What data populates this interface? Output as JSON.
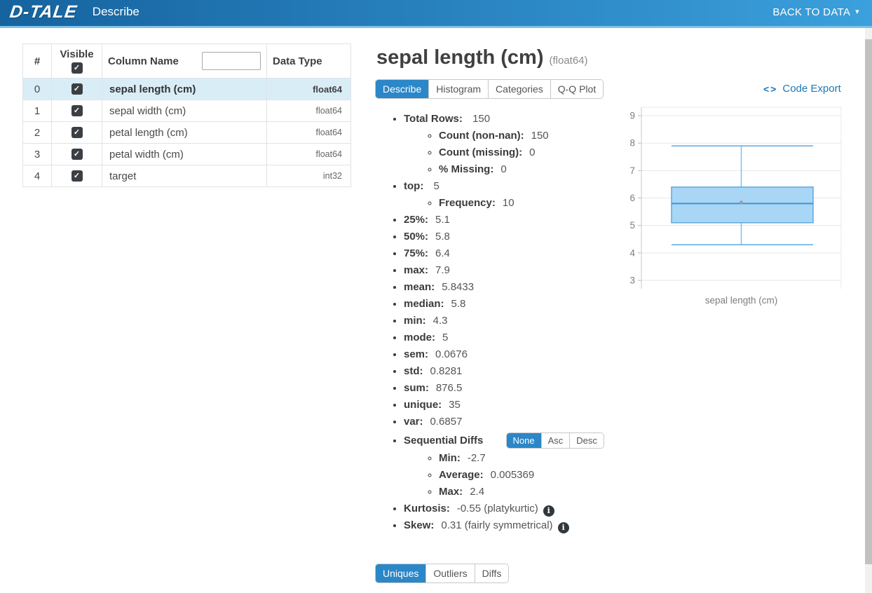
{
  "header": {
    "logo": "D-TALE",
    "title": "Describe",
    "back_link": "BACK TO DATA"
  },
  "icons": {
    "caret_down": "▾",
    "check": "✓",
    "info": "i",
    "code": "<>"
  },
  "colors": {
    "accent_blue": "#2b87c8",
    "header_gradient_left": "#15639f",
    "header_gradient_right": "#3ba0dc",
    "selected_row_bg": "#d9edf7",
    "link_blue": "#1f78b5",
    "box_fill": "#a9d6f5",
    "box_stroke": "#5ea9e0"
  },
  "columns_table": {
    "index_header": "#",
    "visible_header": "Visible",
    "name_header": "Column Name",
    "dtype_header": "Data Type",
    "filter_value": "",
    "rows": [
      {
        "index": "0",
        "visible": true,
        "name": "sepal length (cm)",
        "dtype": "float64",
        "selected": true
      },
      {
        "index": "1",
        "visible": true,
        "name": "sepal width (cm)",
        "dtype": "float64",
        "selected": false
      },
      {
        "index": "2",
        "visible": true,
        "name": "petal length (cm)",
        "dtype": "float64",
        "selected": false
      },
      {
        "index": "3",
        "visible": true,
        "name": "petal width (cm)",
        "dtype": "float64",
        "selected": false
      },
      {
        "index": "4",
        "visible": true,
        "name": "target",
        "dtype": "int32",
        "selected": false
      }
    ]
  },
  "details": {
    "title": "sepal length (cm)",
    "dtype_suffix": "(float64)",
    "tabs": [
      {
        "label": "Describe",
        "active": true
      },
      {
        "label": "Histogram",
        "active": false
      },
      {
        "label": "Categories",
        "active": false
      },
      {
        "label": "Q-Q Plot",
        "active": false
      }
    ],
    "code_export_icon": "<>",
    "code_export_label": "Code Export",
    "stats": [
      {
        "label": "Total Rows:",
        "value": "150",
        "children": [
          {
            "label": "Count (non-nan):",
            "value": "150"
          },
          {
            "label": "Count (missing):",
            "value": "0"
          },
          {
            "label": "% Missing:",
            "value": "0"
          }
        ]
      },
      {
        "label": "top:",
        "value": "5",
        "children": [
          {
            "label": "Frequency:",
            "value": "10"
          }
        ]
      },
      {
        "label": "25%:",
        "value": "5.1"
      },
      {
        "label": "50%:",
        "value": "5.8"
      },
      {
        "label": "75%:",
        "value": "6.4"
      },
      {
        "label": "max:",
        "value": "7.9"
      },
      {
        "label": "mean:",
        "value": "5.8433"
      },
      {
        "label": "median:",
        "value": "5.8"
      },
      {
        "label": "min:",
        "value": "4.3"
      },
      {
        "label": "mode:",
        "value": "5"
      },
      {
        "label": "sem:",
        "value": "0.0676"
      },
      {
        "label": "std:",
        "value": "0.8281"
      },
      {
        "label": "sum:",
        "value": "876.5"
      },
      {
        "label": "unique:",
        "value": "35"
      },
      {
        "label": "var:",
        "value": "0.6857"
      }
    ],
    "sequential_diffs": {
      "label": "Sequential Diffs",
      "tabs": [
        {
          "label": "None",
          "active": true
        },
        {
          "label": "Asc",
          "active": false
        },
        {
          "label": "Desc",
          "active": false
        }
      ],
      "children": [
        {
          "label": "Min:",
          "value": "-2.7"
        },
        {
          "label": "Average:",
          "value": "0.005369"
        },
        {
          "label": "Max:",
          "value": "2.4"
        }
      ]
    },
    "kurtosis": {
      "label": "Kurtosis:",
      "value": "-0.55 (platykurtic)"
    },
    "skew": {
      "label": "Skew:",
      "value": "0.31 (fairly symmetrical)"
    },
    "bottom_tabs": [
      {
        "label": "Uniques",
        "active": true
      },
      {
        "label": "Outliers",
        "active": false
      },
      {
        "label": "Diffs",
        "active": false
      }
    ]
  },
  "chart_data": {
    "type": "boxplot",
    "title": "",
    "xlabel": "sepal length (cm)",
    "ylabel": "",
    "yticks": [
      3,
      4,
      5,
      6,
      7,
      8,
      9
    ],
    "ylim": [
      2.69,
      9.31
    ],
    "grid": true,
    "series": [
      {
        "name": "sepal length (cm)",
        "min": 4.3,
        "q1": 5.1,
        "median": 5.8,
        "q3": 6.4,
        "max": 7.9,
        "mean": 5.8433
      }
    ]
  }
}
